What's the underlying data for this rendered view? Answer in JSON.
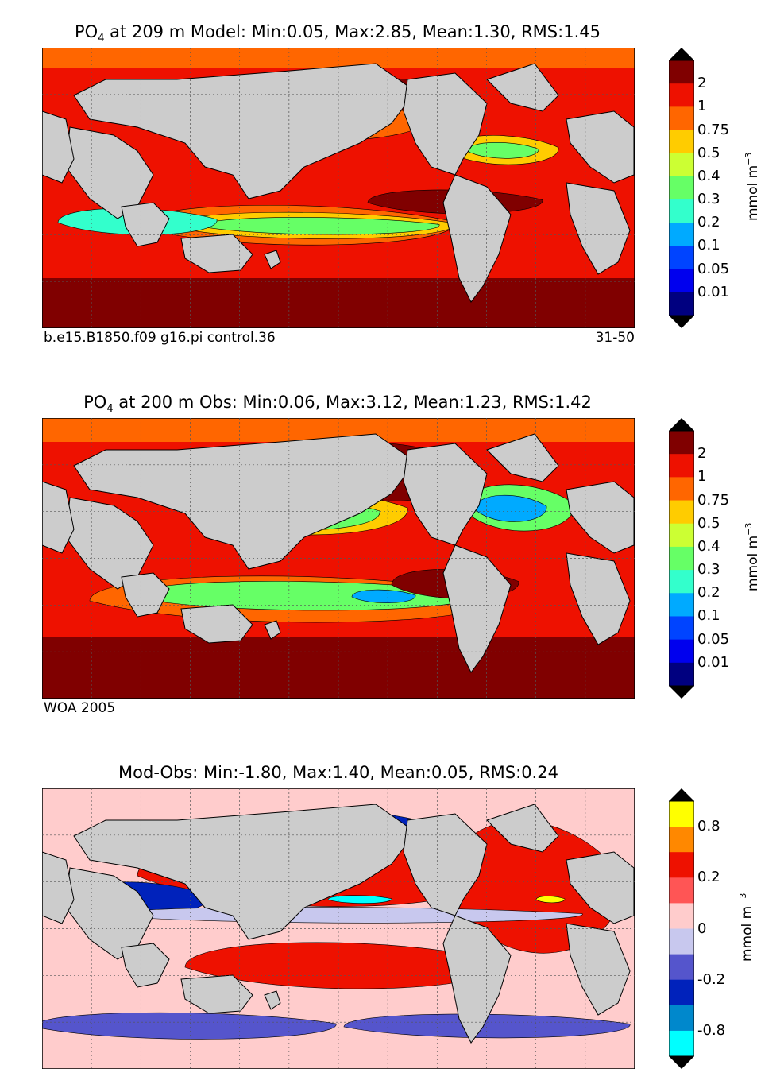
{
  "chart_data": [
    {
      "type": "heatmap",
      "title_prefix": "PO",
      "title_sub": "4",
      "title_rest": " at 209 m Model: Min:0.05, Max:2.85, Mean:1.30, RMS:1.45",
      "stats": {
        "depth_m": 209,
        "min": 0.05,
        "max": 2.85,
        "mean": 1.3,
        "rms": 1.45
      },
      "left_caption": "b.e15.B1850.f09 g16.pi control.36",
      "right_caption": "31-50",
      "colorbar": {
        "labels": [
          "2",
          "1",
          "0.75",
          "0.5",
          "0.4",
          "0.3",
          "0.2",
          "0.1",
          "0.05",
          "0.01"
        ],
        "colors": [
          "#800000",
          "#ee1100",
          "#ff6600",
          "#ffcc00",
          "#ccff33",
          "#66ff66",
          "#33ffcc",
          "#00aaff",
          "#0044ff",
          "#0000ee",
          "#000080"
        ],
        "unit_base": "mmol m",
        "unit_exp": "−3"
      }
    },
    {
      "type": "heatmap",
      "title_prefix": "PO",
      "title_sub": "4",
      "title_rest": " at 200 m Obs: Min:0.06, Max:3.12, Mean:1.23, RMS:1.42",
      "stats": {
        "depth_m": 200,
        "min": 0.06,
        "max": 3.12,
        "mean": 1.23,
        "rms": 1.42
      },
      "left_caption": "WOA 2005",
      "right_caption": "",
      "colorbar": {
        "labels": [
          "2",
          "1",
          "0.75",
          "0.5",
          "0.4",
          "0.3",
          "0.2",
          "0.1",
          "0.05",
          "0.01"
        ],
        "colors": [
          "#800000",
          "#ee1100",
          "#ff6600",
          "#ffcc00",
          "#ccff33",
          "#66ff66",
          "#33ffcc",
          "#00aaff",
          "#0044ff",
          "#0000ee",
          "#000080"
        ],
        "unit_base": "mmol m",
        "unit_exp": "−3"
      }
    },
    {
      "type": "heatmap",
      "title_prefix": "",
      "title_sub": "",
      "title_rest": "Mod-Obs: Min:-1.80, Max:1.40, Mean:0.05, RMS:0.24",
      "stats": {
        "min": -1.8,
        "max": 1.4,
        "mean": 0.05,
        "rms": 0.24
      },
      "left_caption": "",
      "right_caption": "",
      "colorbar": {
        "labels": [
          "0.8",
          "0.2",
          "0",
          "-0.2",
          "-0.8"
        ],
        "colors": [
          "#ffff00",
          "#ff8800",
          "#ee1100",
          "#ff5555",
          "#ffcccc",
          "#c8c8ee",
          "#5555cc",
          "#0022bb",
          "#0088cc",
          "#00ffff"
        ],
        "unit_base": "mmol m",
        "unit_exp": "−3"
      }
    }
  ]
}
